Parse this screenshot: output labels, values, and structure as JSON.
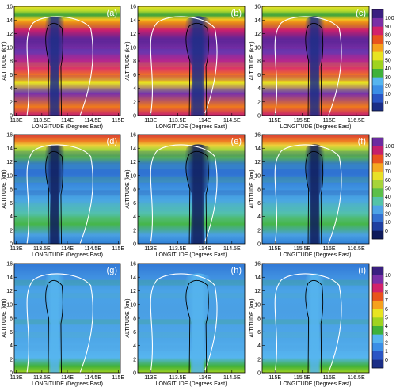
{
  "chart_data": {
    "type": "heatmap",
    "rows": [
      {
        "colorbar": {
          "ticks": [
            "0",
            "10",
            "20",
            "30",
            "40",
            "50",
            "60",
            "70",
            "80",
            "90",
            "100"
          ],
          "colors": [
            "#1b2e86",
            "#2a55c4",
            "#3b8ee6",
            "#56b5ef",
            "#3fb13a",
            "#9fd320",
            "#e8e421",
            "#f6a11d",
            "#e8541c",
            "#d2226a",
            "#7a2fa6",
            "#3a1f80"
          ]
        }
      },
      {
        "colorbar": {
          "ticks": [
            "0",
            "10",
            "20",
            "30",
            "40",
            "50",
            "60",
            "70",
            "80",
            "90",
            "100"
          ],
          "colors": [
            "#0e1a5a",
            "#1f3fa0",
            "#3370d0",
            "#4ea3e6",
            "#54c3a8",
            "#5bbf49",
            "#a6d43a",
            "#e8e127",
            "#f5a821",
            "#e9531f",
            "#c4206c",
            "#6b2ca0"
          ]
        }
      },
      {
        "colorbar": {
          "ticks": [
            "0",
            "1",
            "2",
            "3",
            "4",
            "5",
            "6",
            "7",
            "8",
            "9",
            "10"
          ],
          "colors": [
            "#1b2e86",
            "#2a55c4",
            "#3b8ee6",
            "#56b5ef",
            "#3fb13a",
            "#9fd320",
            "#e8e421",
            "#f6a11d",
            "#e8541c",
            "#d2226a",
            "#7a2fa6",
            "#3a1f80"
          ]
        }
      }
    ],
    "panels": [
      {
        "label": "(a)",
        "xticks": [
          "113E",
          "113.5E",
          "114E",
          "114.5E",
          "115E"
        ]
      },
      {
        "label": "(b)",
        "xticks": [
          "113E",
          "113.5E",
          "114E",
          "114.5E"
        ]
      },
      {
        "label": "(c)",
        "xticks": [
          "115E",
          "115.5E",
          "116E",
          "116.5E"
        ]
      },
      {
        "label": "(d)",
        "xticks": [
          "113E",
          "113.5E",
          "114E",
          "114.5E",
          "115E"
        ]
      },
      {
        "label": "(e)",
        "xticks": [
          "113E",
          "113.5E",
          "114E",
          "114.5E"
        ]
      },
      {
        "label": "(f)",
        "xticks": [
          "115E",
          "115.5E",
          "116E",
          "116.5E"
        ]
      },
      {
        "label": "(g)",
        "xticks": [
          "113E",
          "113.5E",
          "114E",
          "114.5E",
          "115E"
        ]
      },
      {
        "label": "(h)",
        "xticks": [
          "113E",
          "113.5E",
          "114E",
          "114.5E"
        ]
      },
      {
        "label": "(i)",
        "xticks": [
          "115E",
          "115.5E",
          "116E",
          "116.5E"
        ]
      }
    ],
    "yticks": [
      "0",
      "2",
      "4",
      "6",
      "8",
      "10",
      "12",
      "14",
      "16"
    ],
    "ylim": [
      0,
      16
    ],
    "ylabel": "ALTITUDE (km)",
    "xlabel": "LONGITUDE (Degrees East)"
  }
}
